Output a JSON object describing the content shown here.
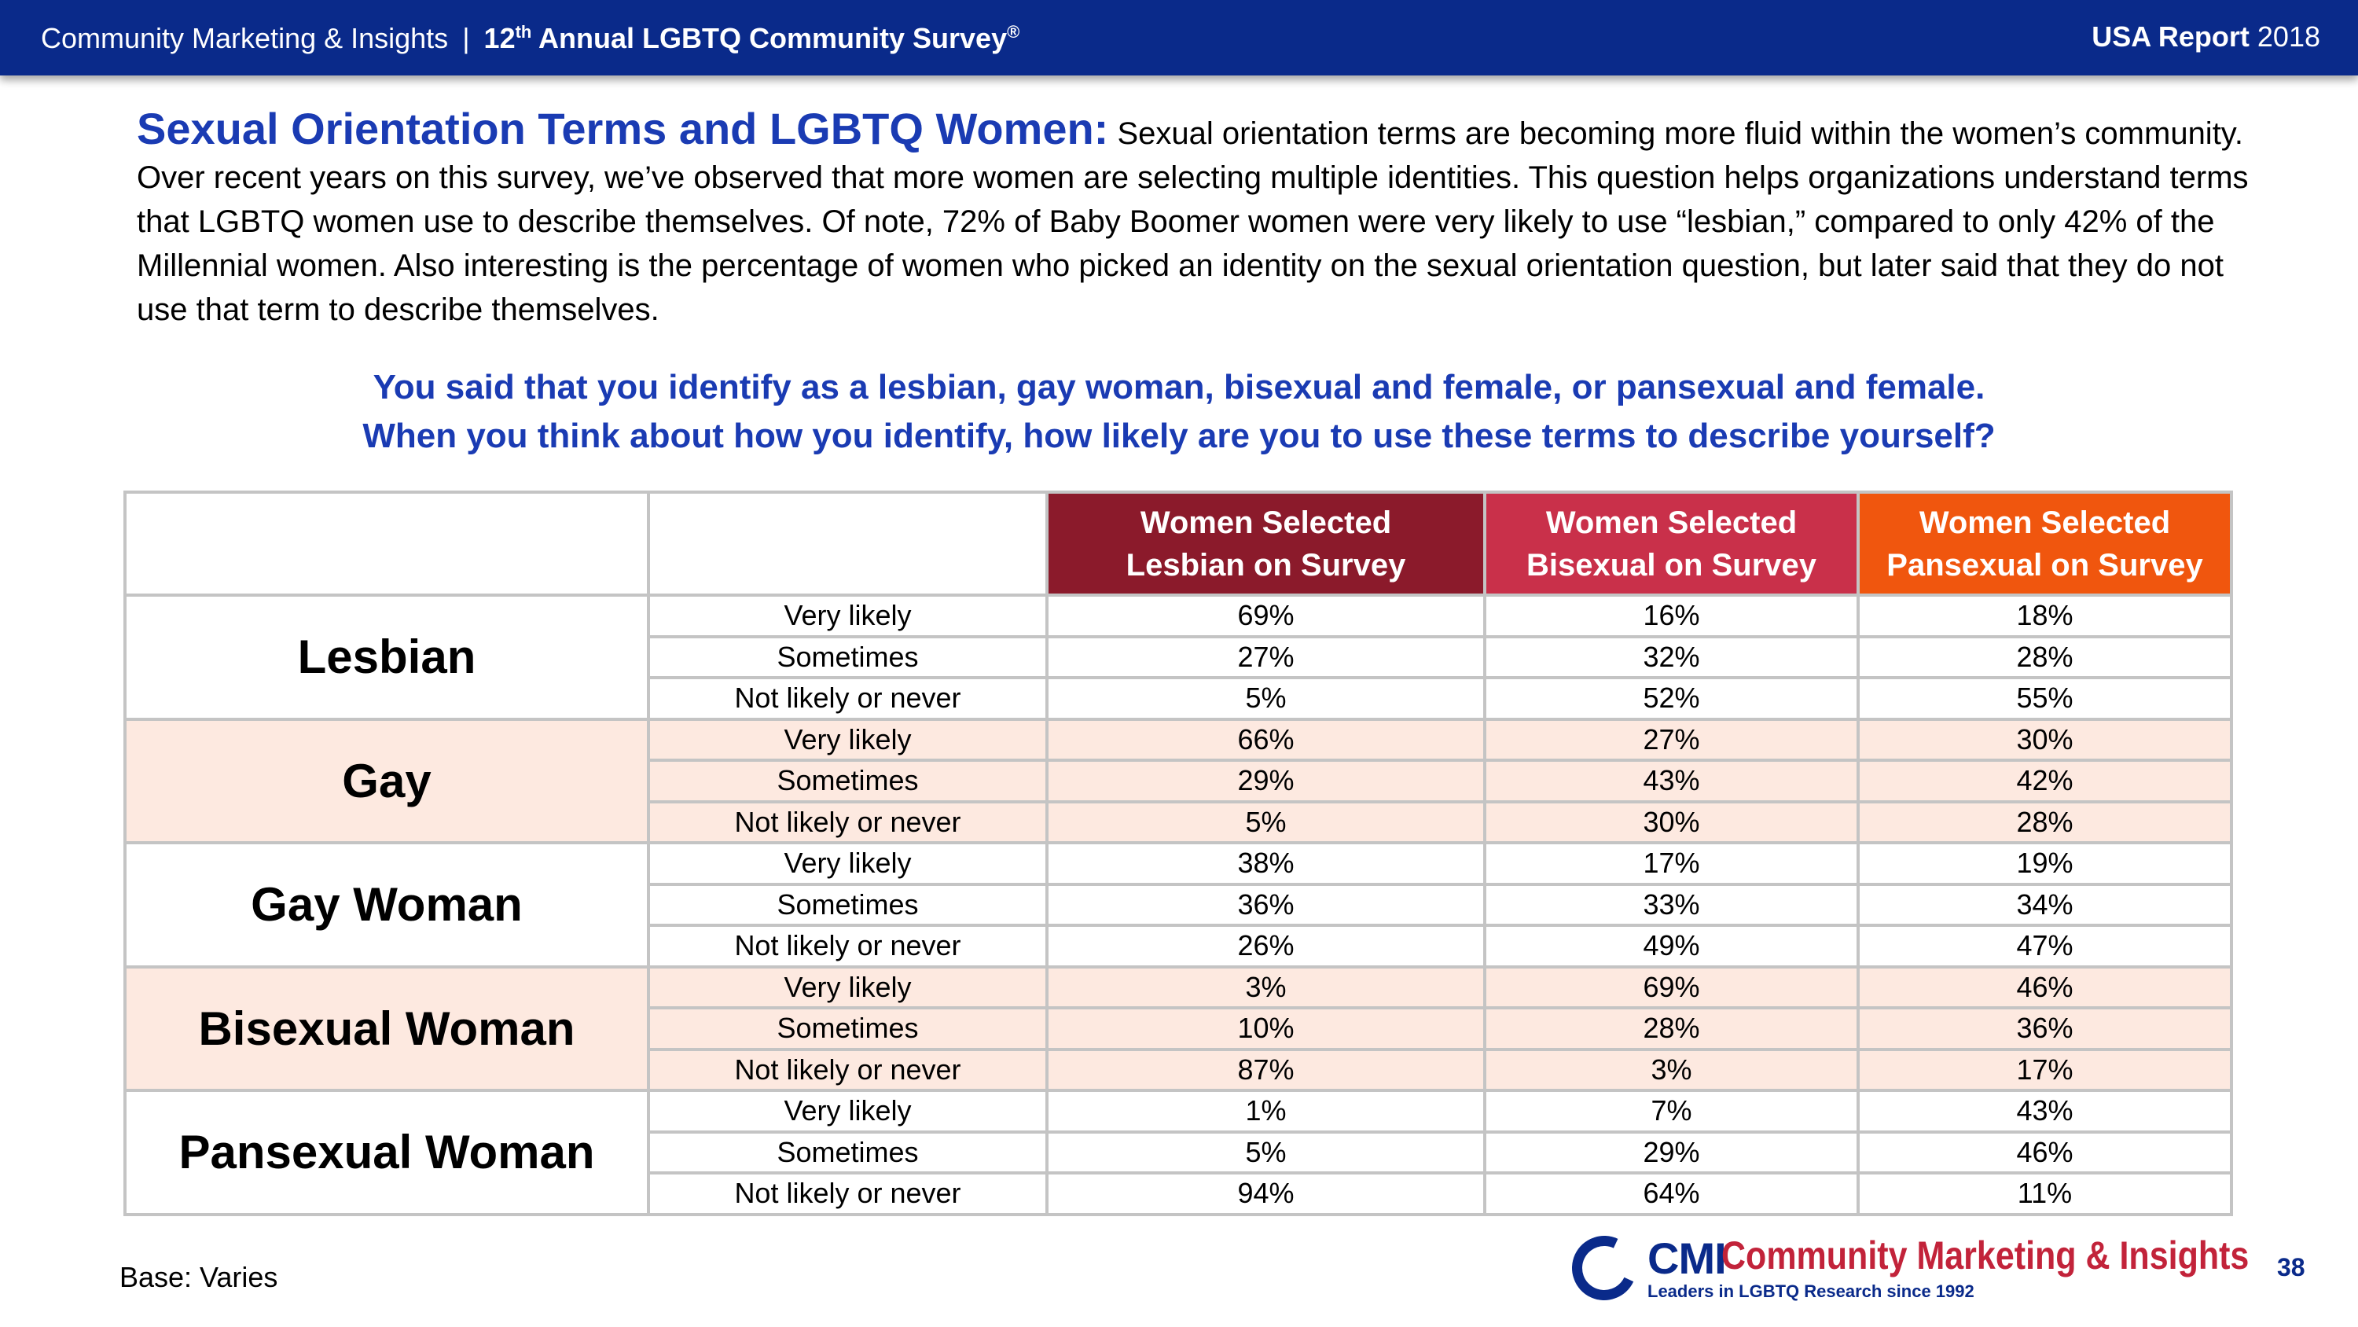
{
  "header": {
    "org": "Community Marketing & Insights",
    "separator": "|",
    "survey_ordinal_num": "12",
    "survey_ordinal_suffix": "th",
    "survey_title": "Annual LGBTQ Community Survey",
    "survey_mark": "®",
    "report_label": "USA Report",
    "report_year": "2018"
  },
  "intro": {
    "lead": "Sexual Orientation Terms and LGBTQ Women:",
    "body": "Sexual orientation terms are becoming more fluid within the women’s community. Over recent years on this survey, we’ve observed that more women are selecting multiple identities. This question helps organizations understand terms that LGBTQ women use to describe themselves. Of note, 72% of Baby Boomer women were very likely to use “lesbian,” compared to only 42% of the Millennial women. Also interesting is the percentage of women who picked an identity on the sexual orientation question, but later said that they do not use that term to describe themselves."
  },
  "question": {
    "line1": "You said that you identify as a lesbian, gay woman, bisexual and female, or pansexual and female.",
    "line2": "When you think about how you identify, how likely are you to use these terms to describe yourself?"
  },
  "table": {
    "columns": [
      {
        "line1": "Women Selected",
        "line2": "Lesbian on Survey",
        "color": "#8b1a2b"
      },
      {
        "line1": "Women Selected",
        "line2": "Bisexual  on Survey",
        "color": "#c9304a"
      },
      {
        "line1": "Women Selected",
        "line2": "Pansexual on Survey",
        "color": "#f0560e"
      }
    ],
    "groups": [
      {
        "term": "Lesbian",
        "shaded": false,
        "rows": [
          {
            "response": "Very likely",
            "values": [
              "69%",
              "16%",
              "18%"
            ]
          },
          {
            "response": "Sometimes",
            "values": [
              "27%",
              "32%",
              "28%"
            ]
          },
          {
            "response": "Not likely or never",
            "values": [
              "5%",
              "52%",
              "55%"
            ]
          }
        ]
      },
      {
        "term": "Gay",
        "shaded": true,
        "rows": [
          {
            "response": "Very likely",
            "values": [
              "66%",
              "27%",
              "30%"
            ]
          },
          {
            "response": "Sometimes",
            "values": [
              "29%",
              "43%",
              "42%"
            ]
          },
          {
            "response": "Not likely or never",
            "values": [
              "5%",
              "30%",
              "28%"
            ]
          }
        ]
      },
      {
        "term": "Gay Woman",
        "shaded": false,
        "rows": [
          {
            "response": "Very likely",
            "values": [
              "38%",
              "17%",
              "19%"
            ]
          },
          {
            "response": "Sometimes",
            "values": [
              "36%",
              "33%",
              "34%"
            ]
          },
          {
            "response": "Not likely or never",
            "values": [
              "26%",
              "49%",
              "47%"
            ]
          }
        ]
      },
      {
        "term": "Bisexual Woman",
        "shaded": true,
        "rows": [
          {
            "response": "Very likely",
            "values": [
              "3%",
              "69%",
              "46%"
            ]
          },
          {
            "response": "Sometimes",
            "values": [
              "10%",
              "28%",
              "36%"
            ]
          },
          {
            "response": "Not likely or never",
            "values": [
              "87%",
              "3%",
              "17%"
            ]
          }
        ]
      },
      {
        "term": "Pansexual Woman",
        "shaded": false,
        "rows": [
          {
            "response": "Very likely",
            "values": [
              "1%",
              "7%",
              "43%"
            ]
          },
          {
            "response": "Sometimes",
            "values": [
              "5%",
              "29%",
              "46%"
            ]
          },
          {
            "response": "Not likely or never",
            "values": [
              "94%",
              "64%",
              "11%"
            ]
          }
        ]
      }
    ]
  },
  "footer": {
    "base": "Base: Varies",
    "logo_cmi": "CMI",
    "logo_name": "Community Marketing & Insights",
    "logo_tagline": "Leaders in LGBTQ Research since 1992",
    "page_number": "38"
  }
}
